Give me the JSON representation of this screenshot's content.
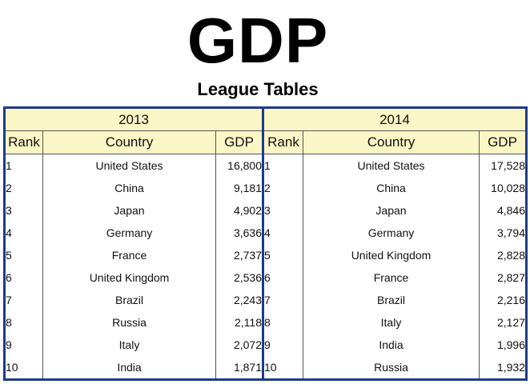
{
  "header": {
    "title": "GDP",
    "subtitle": "League Tables"
  },
  "chart_data": {
    "type": "table",
    "title": "GDP",
    "subtitle": "League Tables",
    "columns": [
      "Rank",
      "Country",
      "GDP"
    ],
    "tables": [
      {
        "year": "2013",
        "rows": [
          {
            "rank": "1",
            "country": "United States",
            "gdp": "16,800"
          },
          {
            "rank": "2",
            "country": "China",
            "gdp": "9,181"
          },
          {
            "rank": "3",
            "country": "Japan",
            "gdp": "4,902"
          },
          {
            "rank": "4",
            "country": "Germany",
            "gdp": "3,636"
          },
          {
            "rank": "5",
            "country": "France",
            "gdp": "2,737"
          },
          {
            "rank": "6",
            "country": "United Kingdom",
            "gdp": "2,536"
          },
          {
            "rank": "7",
            "country": "Brazil",
            "gdp": "2,243"
          },
          {
            "rank": "8",
            "country": "Russia",
            "gdp": "2,118"
          },
          {
            "rank": "9",
            "country": "Italy",
            "gdp": "2,072"
          },
          {
            "rank": "10",
            "country": "India",
            "gdp": "1,871"
          }
        ]
      },
      {
        "year": "2014",
        "rows": [
          {
            "rank": "1",
            "country": "United States",
            "gdp": "17,528"
          },
          {
            "rank": "2",
            "country": "China",
            "gdp": "10,028"
          },
          {
            "rank": "3",
            "country": "Japan",
            "gdp": "4,846"
          },
          {
            "rank": "4",
            "country": "Germany",
            "gdp": "3,794"
          },
          {
            "rank": "5",
            "country": "United Kingdom",
            "gdp": "2,828"
          },
          {
            "rank": "6",
            "country": "France",
            "gdp": "2,827"
          },
          {
            "rank": "7",
            "country": "Brazil",
            "gdp": "2,216"
          },
          {
            "rank": "8",
            "country": "Italy",
            "gdp": "2,127"
          },
          {
            "rank": "9",
            "country": "India",
            "gdp": "1,996"
          },
          {
            "rank": "10",
            "country": "Russia",
            "gdp": "1,932"
          }
        ]
      }
    ]
  },
  "colors": {
    "header_background": "#fbf6c6",
    "border_accent": "#1e3a8a"
  }
}
